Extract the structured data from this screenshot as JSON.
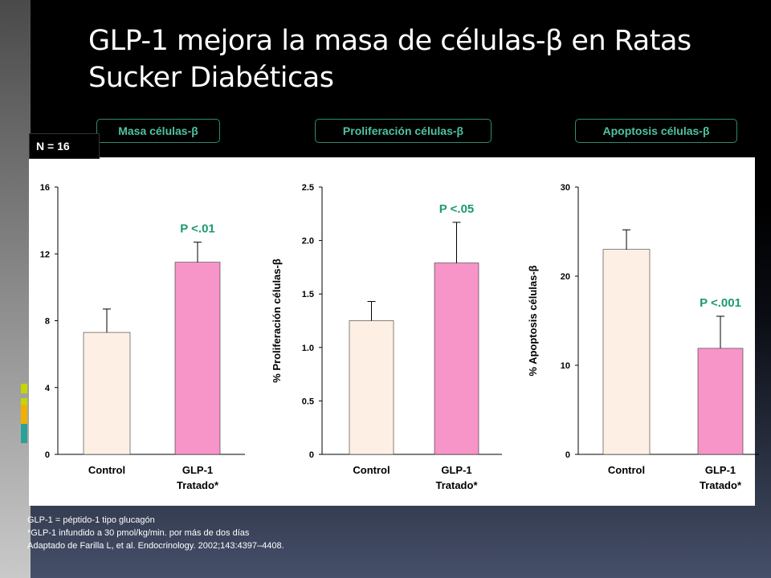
{
  "slide": {
    "title": "GLP-1 mejora la masa de células-β en Ratas Sucker Diabéticas",
    "n_label": "N = 16",
    "footnotes": [
      "GLP-1 = péptido-1 tipo glucagón",
      "*GLP-1 infundido a 30 pmol/kg/min. por más de dos días",
      "Adaptado de Farilla L, et al. Endocrinology. 2002;143:4397–4408."
    ],
    "colors": {
      "control_bar": "#fdefe3",
      "treated_bar": "#f794c8",
      "panel_label_text": "#4fc3a1",
      "p_value_text": "#1c9a6c"
    }
  },
  "chart_data": [
    {
      "type": "bar",
      "panel_label": "Masa células-β",
      "ylabel": "",
      "ylim": [
        0,
        16
      ],
      "yticks": [
        "0",
        "4",
        "8",
        "12",
        "16"
      ],
      "categories": [
        "Control",
        "GLP-1\nTratado*"
      ],
      "values": [
        7.3,
        11.5
      ],
      "errors": [
        1.4,
        1.2
      ],
      "annotation": "P <.01"
    },
    {
      "type": "bar",
      "panel_label": "Proliferación células-β",
      "ylabel": "% Proliferación células-β",
      "ylim": [
        0,
        2.5
      ],
      "yticks": [
        "0",
        "0.5",
        "1.0",
        "1.5",
        "2.0",
        "2.5"
      ],
      "categories": [
        "Control",
        "GLP-1\nTratado*"
      ],
      "values": [
        1.25,
        1.79
      ],
      "errors": [
        0.18,
        0.38
      ],
      "annotation": "P <.05"
    },
    {
      "type": "bar",
      "panel_label": "Apoptosis células-β",
      "ylabel": "% Apoptosis células-β",
      "ylim": [
        0,
        30
      ],
      "yticks": [
        "0",
        "10",
        "20",
        "30"
      ],
      "categories": [
        "Control",
        "GLP-1\nTratado*"
      ],
      "values": [
        23.0,
        11.9
      ],
      "errors": [
        2.2,
        3.6
      ],
      "annotation": "P <.001"
    }
  ]
}
